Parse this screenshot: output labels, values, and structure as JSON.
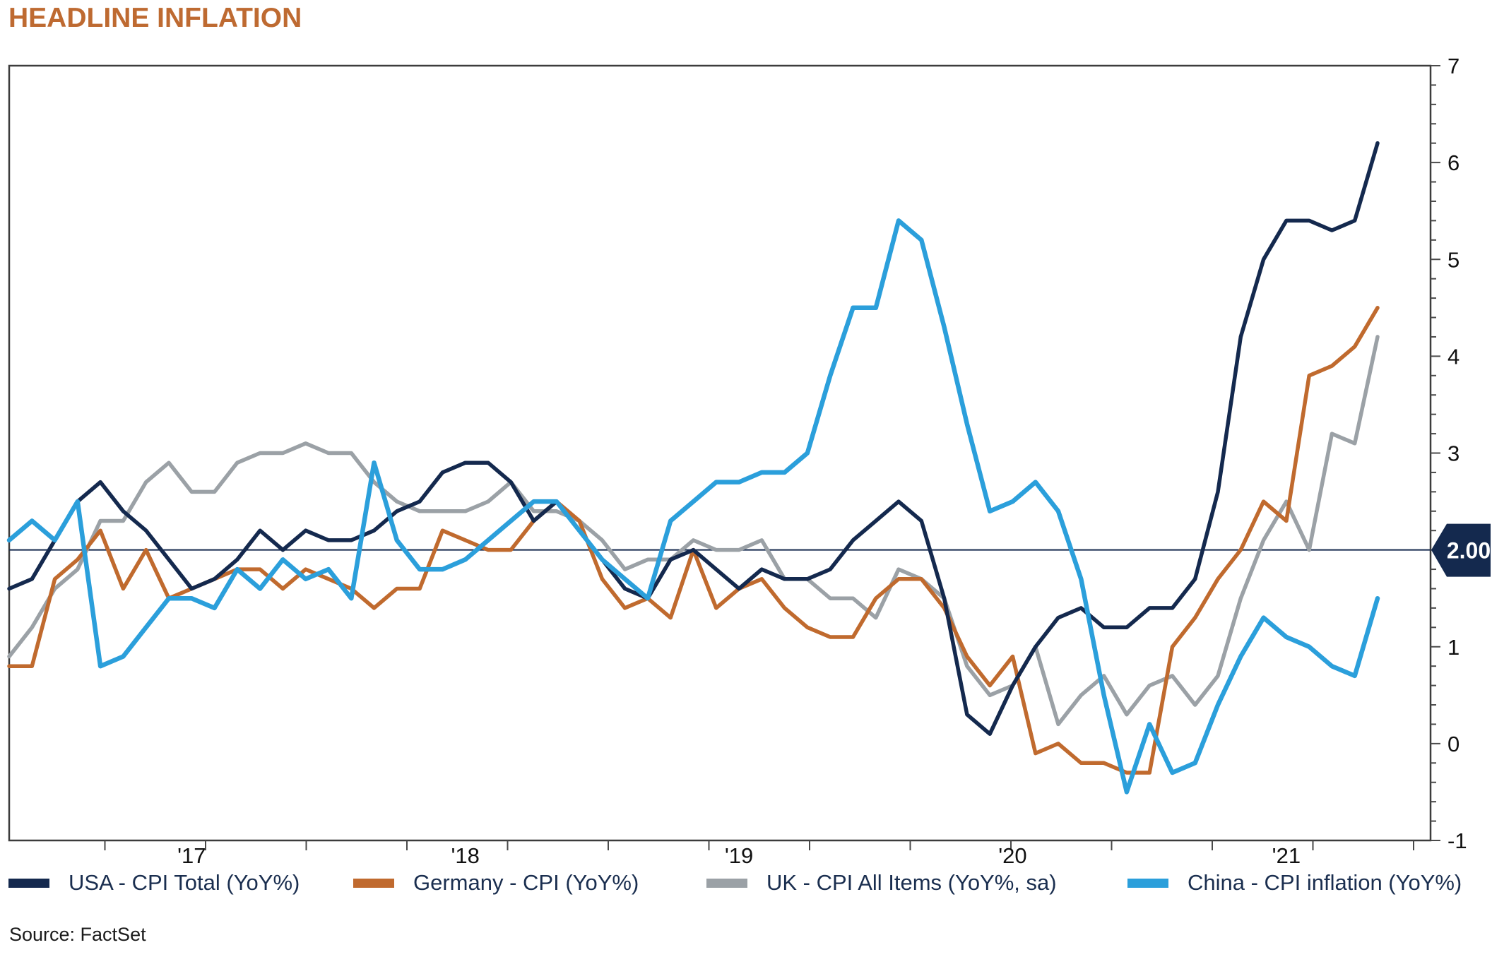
{
  "page": {
    "title": "HEADLINE INFLATION",
    "source": "Source: FactSet"
  },
  "colors": {
    "title": "#BE6A31",
    "axis": "#4A4A4A",
    "plot_border": "#3C3C3C",
    "tick_label": "#111111",
    "legend_text": "#1A2E4F",
    "reference": "#14294E",
    "reference_tag_bg": "#14294E",
    "reference_tag_text": "#FFFFFF"
  },
  "chart_data": {
    "type": "line",
    "title": "HEADLINE INFLATION",
    "xlabel": "",
    "ylabel": "",
    "ylim": [
      -1,
      7
    ],
    "y_ticks": [
      7,
      6,
      5,
      4,
      3,
      1,
      0,
      -1
    ],
    "y_minor_step": 0.2,
    "x_tick_labels": [
      "'17",
      "'18",
      "'19",
      "'20",
      "'21"
    ],
    "grid": false,
    "legend_position": "bottom",
    "reference_line": {
      "value": 2.0,
      "label": "2.00"
    },
    "months": [
      "2016-10",
      "2016-11",
      "2016-12",
      "2017-01",
      "2017-02",
      "2017-03",
      "2017-04",
      "2017-05",
      "2017-06",
      "2017-07",
      "2017-08",
      "2017-09",
      "2017-10",
      "2017-11",
      "2017-12",
      "2018-01",
      "2018-02",
      "2018-03",
      "2018-04",
      "2018-05",
      "2018-06",
      "2018-07",
      "2018-08",
      "2018-09",
      "2018-10",
      "2018-11",
      "2018-12",
      "2019-01",
      "2019-02",
      "2019-03",
      "2019-04",
      "2019-05",
      "2019-06",
      "2019-07",
      "2019-08",
      "2019-09",
      "2019-10",
      "2019-11",
      "2019-12",
      "2020-01",
      "2020-02",
      "2020-03",
      "2020-04",
      "2020-05",
      "2020-06",
      "2020-07",
      "2020-08",
      "2020-09",
      "2020-10",
      "2020-11",
      "2020-12",
      "2021-01",
      "2021-02",
      "2021-03",
      "2021-04",
      "2021-05",
      "2021-06",
      "2021-07",
      "2021-08",
      "2021-09",
      "2021-10"
    ],
    "series": [
      {
        "id": "usa",
        "name": "USA - CPI Total (YoY%)",
        "color": "#14294E",
        "width": 5.5,
        "values": [
          1.6,
          1.7,
          2.1,
          2.5,
          2.7,
          2.4,
          2.2,
          1.9,
          1.6,
          1.7,
          1.9,
          2.2,
          2.0,
          2.2,
          2.1,
          2.1,
          2.2,
          2.4,
          2.5,
          2.8,
          2.9,
          2.9,
          2.7,
          2.3,
          2.5,
          2.2,
          1.9,
          1.6,
          1.5,
          1.9,
          2.0,
          1.8,
          1.6,
          1.8,
          1.7,
          1.7,
          1.8,
          2.1,
          2.3,
          2.5,
          2.3,
          1.5,
          0.3,
          0.1,
          0.6,
          1.0,
          1.3,
          1.4,
          1.2,
          1.2,
          1.4,
          1.4,
          1.7,
          2.6,
          4.2,
          5.0,
          5.4,
          5.4,
          5.3,
          5.4,
          6.2
        ]
      },
      {
        "id": "germany",
        "name": "Germany - CPI (YoY%)",
        "color": "#C06A2E",
        "width": 5.5,
        "values": [
          0.8,
          0.8,
          1.7,
          1.9,
          2.2,
          1.6,
          2.0,
          1.5,
          1.6,
          1.7,
          1.8,
          1.8,
          1.6,
          1.8,
          1.7,
          1.6,
          1.4,
          1.6,
          1.6,
          2.2,
          2.1,
          2.0,
          2.0,
          2.3,
          2.5,
          2.3,
          1.7,
          1.4,
          1.5,
          1.3,
          2.0,
          1.4,
          1.6,
          1.7,
          1.4,
          1.2,
          1.1,
          1.1,
          1.5,
          1.7,
          1.7,
          1.4,
          0.9,
          0.6,
          0.9,
          -0.1,
          0.0,
          -0.2,
          -0.2,
          -0.3,
          -0.3,
          1.0,
          1.3,
          1.7,
          2.0,
          2.5,
          2.3,
          3.8,
          3.9,
          4.1,
          4.5
        ]
      },
      {
        "id": "uk",
        "name": "UK - CPI All Items (YoY%, sa)",
        "color": "#9BA1A6",
        "width": 5.5,
        "values": [
          0.9,
          1.2,
          1.6,
          1.8,
          2.3,
          2.3,
          2.7,
          2.9,
          2.6,
          2.6,
          2.9,
          3.0,
          3.0,
          3.1,
          3.0,
          3.0,
          2.7,
          2.5,
          2.4,
          2.4,
          2.4,
          2.5,
          2.7,
          2.4,
          2.4,
          2.3,
          2.1,
          1.8,
          1.9,
          1.9,
          2.1,
          2.0,
          2.0,
          2.1,
          1.7,
          1.7,
          1.5,
          1.5,
          1.3,
          1.8,
          1.7,
          1.5,
          0.8,
          0.5,
          0.6,
          1.0,
          0.2,
          0.5,
          0.7,
          0.3,
          0.6,
          0.7,
          0.4,
          0.7,
          1.5,
          2.1,
          2.5,
          2.0,
          3.2,
          3.1,
          4.2
        ]
      },
      {
        "id": "china",
        "name": "China - CPI inflation (YoY%)",
        "color": "#2B9FDB",
        "width": 6.5,
        "values": [
          2.1,
          2.3,
          2.1,
          2.5,
          0.8,
          0.9,
          1.2,
          1.5,
          1.5,
          1.4,
          1.8,
          1.6,
          1.9,
          1.7,
          1.8,
          1.5,
          2.9,
          2.1,
          1.8,
          1.8,
          1.9,
          2.1,
          2.3,
          2.5,
          2.5,
          2.2,
          1.9,
          1.7,
          1.5,
          2.3,
          2.5,
          2.7,
          2.7,
          2.8,
          2.8,
          3.0,
          3.8,
          4.5,
          4.5,
          5.4,
          5.2,
          4.3,
          3.3,
          2.4,
          2.5,
          2.7,
          2.4,
          1.7,
          0.5,
          -0.5,
          0.2,
          -0.3,
          -0.2,
          0.4,
          0.9,
          1.3,
          1.1,
          1.0,
          0.8,
          0.7,
          1.5
        ]
      }
    ]
  }
}
